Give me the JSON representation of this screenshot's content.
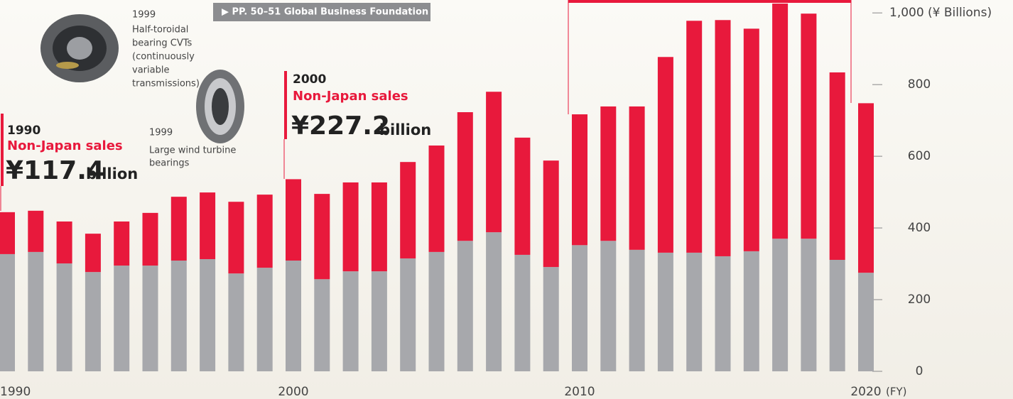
{
  "chart_data": {
    "type": "bar",
    "stacked": true,
    "categories": [
      "1990",
      null,
      null,
      null,
      null,
      null,
      null,
      null,
      null,
      null,
      "2000",
      null,
      null,
      null,
      null,
      null,
      null,
      null,
      null,
      null,
      "2010",
      null,
      null,
      null,
      null,
      null,
      null,
      null,
      null,
      null,
      "2020"
    ],
    "x_unit": "(FY)",
    "y_unit": "(¥ Billions)",
    "series": [
      {
        "color": "#a7a8ac",
        "values": [
          327,
          333,
          301,
          277,
          295,
          295,
          309,
          313,
          273,
          289,
          309,
          257,
          279,
          279,
          315,
          333,
          364,
          388,
          325,
          291,
          352,
          364,
          339,
          331,
          331,
          321,
          335,
          370,
          370,
          311,
          275
        ]
      },
      {
        "color": "#e8193c",
        "values": [
          117,
          115,
          117,
          107,
          123,
          147,
          178,
          186,
          200,
          204,
          227,
          238,
          248,
          248,
          269,
          297,
          359,
          392,
          327,
          297,
          365,
          375,
          400,
          546,
          647,
          659,
          621,
          656,
          628,
          523,
          473
        ]
      }
    ],
    "ylim": [
      0,
      1036
    ],
    "yticks": [
      0,
      200,
      400,
      600,
      800,
      {
        "value": 1000,
        "label": "1,000"
      }
    ],
    "annotations": {
      "a1990": {
        "year": "1990",
        "label": "Non-Japan sales",
        "amount": "¥117.4",
        "unit": "billion"
      },
      "a2000": {
        "year": "2000",
        "label": "Non-Japan sales",
        "amount": "¥227.2",
        "unit": "billion"
      },
      "cvt": {
        "year": "1999",
        "lines": [
          "Half-toroidal",
          "bearing CVTs",
          "(continuously",
          "variable",
          "transmissions)"
        ]
      },
      "wind": {
        "year": "1999",
        "lines": [
          "Large wind turbine",
          "bearings"
        ]
      },
      "link": "▶ PP. 50–51 Global Business Foundation"
    }
  }
}
